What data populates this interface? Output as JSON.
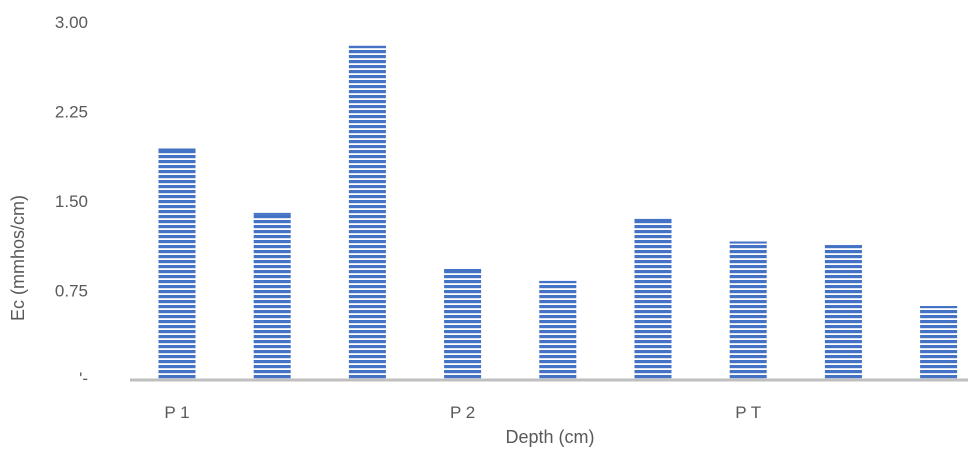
{
  "chart_data": {
    "type": "bar",
    "xlabel": "Depth (cm)",
    "ylabel": "Ec (mmhos/cm)",
    "ylim": [
      0,
      3.0
    ],
    "y_ticks": [
      "'-",
      "0.75",
      "1.50",
      "2.25",
      "3.00"
    ],
    "group_labels": [
      "P 1",
      "P 2",
      "P T"
    ],
    "values": [
      1.94,
      1.4,
      2.8,
      0.93,
      0.83,
      1.35,
      1.16,
      1.13,
      0.62
    ],
    "bar_color": "#4472C4",
    "stripe_color": "#ffffff",
    "axis_color": "#BFBFBF",
    "grid": false
  }
}
